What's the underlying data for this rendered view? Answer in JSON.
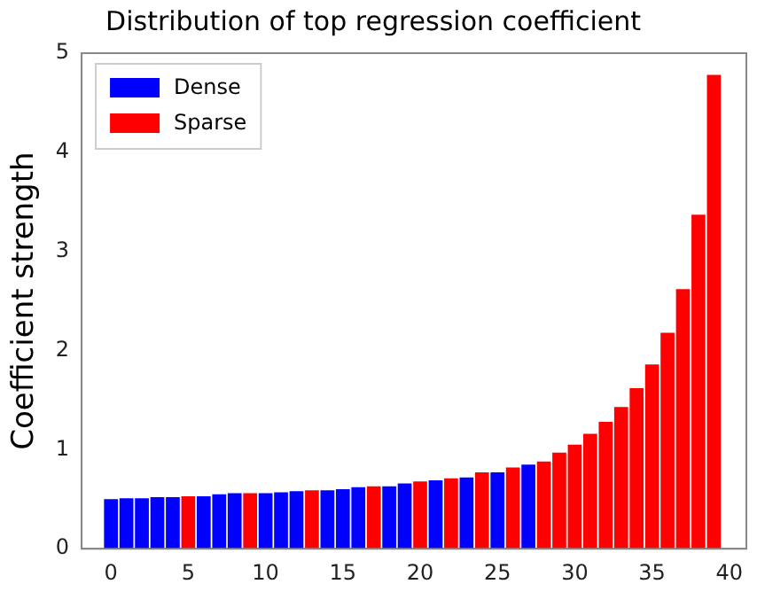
{
  "chart_data": {
    "type": "bar",
    "title": "Distribution of top regression coefficient",
    "ylabel": "Coefficient strength",
    "x": [
      0,
      1,
      2,
      3,
      4,
      5,
      6,
      7,
      8,
      9,
      10,
      11,
      12,
      13,
      14,
      15,
      16,
      17,
      18,
      19,
      20,
      21,
      22,
      23,
      24,
      25,
      26,
      27,
      28,
      29,
      30,
      31,
      32,
      33,
      34,
      35,
      36,
      37,
      38,
      39
    ],
    "series": [
      {
        "name": "Dense",
        "color": "#0000ff",
        "values": [
          0.5,
          0.51,
          0.51,
          0.52,
          0.52,
          null,
          0.53,
          0.55,
          0.56,
          null,
          0.56,
          0.57,
          0.58,
          null,
          0.59,
          0.6,
          0.62,
          null,
          0.63,
          0.66,
          null,
          0.69,
          null,
          0.72,
          null,
          0.77,
          null,
          0.85,
          null,
          null,
          null,
          null,
          null,
          null,
          null,
          null,
          null,
          null,
          null,
          null
        ]
      },
      {
        "name": "Sparse",
        "color": "#ff0000",
        "values": [
          null,
          null,
          null,
          null,
          null,
          0.53,
          null,
          null,
          null,
          0.56,
          null,
          null,
          null,
          0.59,
          null,
          null,
          null,
          0.63,
          null,
          null,
          0.68,
          null,
          0.71,
          null,
          0.77,
          null,
          0.82,
          null,
          0.88,
          0.97,
          1.05,
          1.16,
          1.28,
          1.43,
          1.62,
          1.86,
          2.18,
          2.62,
          3.37,
          4.78
        ]
      }
    ],
    "xlim": [
      -1.9,
      41.1
    ],
    "xticks": [
      0,
      5,
      10,
      15,
      20,
      25,
      30,
      35,
      40
    ],
    "ylim": [
      0,
      5
    ],
    "yticks": [
      0,
      1,
      2,
      3,
      4,
      5
    ],
    "grid": false,
    "legend": "top left"
  }
}
